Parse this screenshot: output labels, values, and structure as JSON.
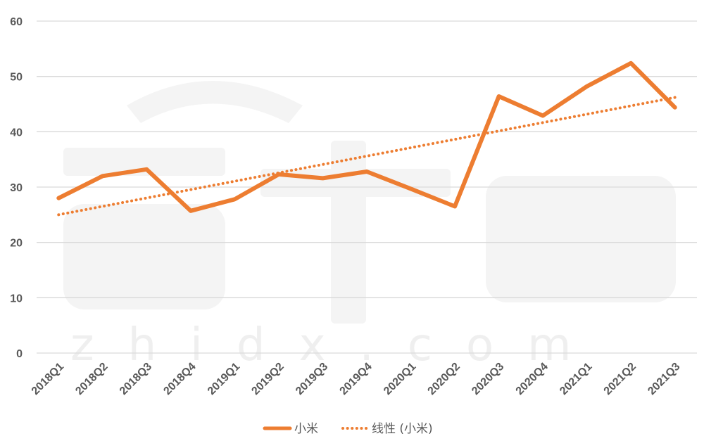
{
  "chart_data": {
    "type": "line",
    "categories": [
      "2018Q1",
      "2018Q2",
      "2018Q3",
      "2018Q4",
      "2019Q1",
      "2019Q2",
      "2019Q3",
      "2019Q4",
      "2020Q1",
      "2020Q2",
      "2020Q3",
      "2020Q4",
      "2021Q1",
      "2021Q2",
      "2021Q3"
    ],
    "series": [
      {
        "name": "小米",
        "values": [
          28.0,
          32.0,
          33.2,
          25.7,
          27.8,
          32.3,
          31.6,
          32.8,
          29.7,
          26.5,
          46.4,
          42.9,
          48.2,
          52.4,
          44.4
        ],
        "color": "#ED7D31",
        "style": "solid"
      }
    ],
    "trendline": {
      "name": "线性 (小米)",
      "type": "linear",
      "start": 25.0,
      "end": 46.2,
      "color": "#ED7D31",
      "style": "dotted"
    },
    "yticks": [
      "0",
      "10",
      "20",
      "30",
      "40",
      "50",
      "60"
    ],
    "ylim": [
      0,
      60
    ],
    "title": "",
    "xlabel": "",
    "ylabel": "",
    "grid": true,
    "legend": "bottom",
    "watermark": "zhidx.com"
  }
}
